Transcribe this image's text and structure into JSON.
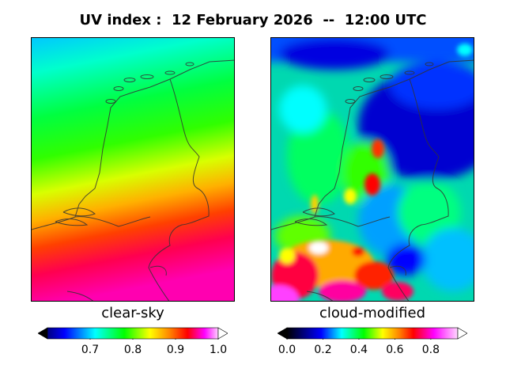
{
  "title": "UV index :  12 February 2026  --  12:00 UTC",
  "panels": [
    {
      "label": "clear-sky",
      "colorbar": {
        "ticks": [
          "0.7",
          "0.8",
          "0.9",
          "1.0"
        ],
        "range": [
          0.6,
          1.0
        ],
        "extend": "both"
      }
    },
    {
      "label": "cloud-modified",
      "colorbar": {
        "ticks": [
          "0.0",
          "0.2",
          "0.4",
          "0.6",
          "0.8"
        ],
        "range": [
          0.0,
          0.95
        ],
        "extend": "both"
      }
    }
  ],
  "colormap": [
    "#000000",
    "#00007f",
    "#0000ff",
    "#00ffff",
    "#00ff00",
    "#ffff00",
    "#ff7f00",
    "#ff0000",
    "#ff00ff",
    "#ffffff"
  ]
}
